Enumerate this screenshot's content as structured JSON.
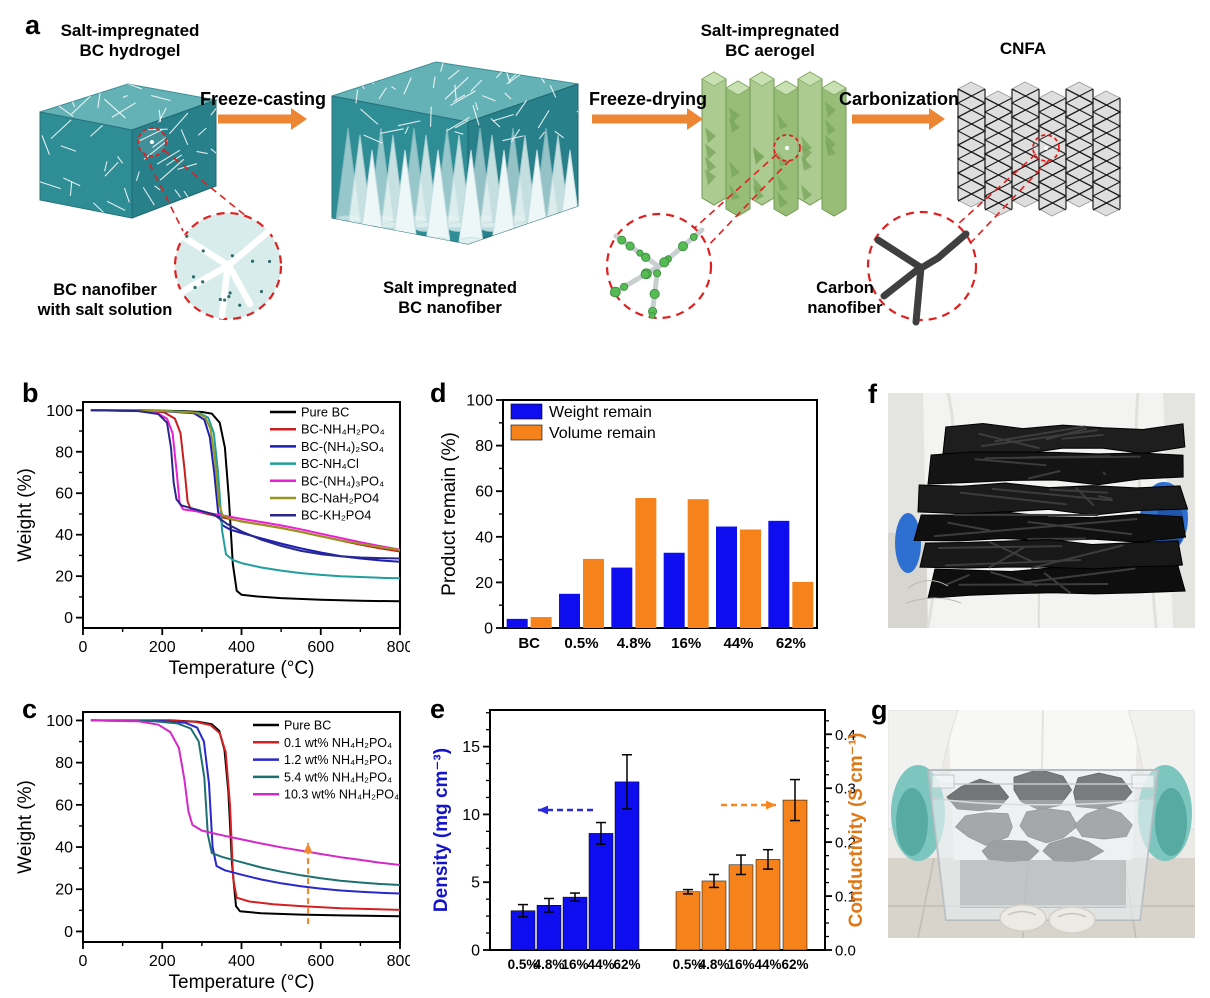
{
  "panel_labels": {
    "a": "a",
    "b": "b",
    "c": "c",
    "d": "d",
    "e": "e",
    "f": "f",
    "g": "g"
  },
  "panel_a": {
    "stage_titles": [
      [
        "Salt-impregnated",
        "BC hydrogel"
      ],
      [
        "Salt-impregnated",
        "BC aerogel"
      ],
      [
        "CNFA"
      ]
    ],
    "arrow_labels": [
      "Freeze-casting",
      "Freeze-drying",
      "Carbonization"
    ],
    "captions": [
      [
        "BC nanofiber",
        "with salt solution"
      ],
      [
        "Salt impregnated",
        "BC nanofiber"
      ],
      [
        "Carbon",
        "nanofiber"
      ]
    ]
  },
  "colors": {
    "process_arrow": "#ed8633",
    "dashed_red": "#e02020",
    "bar_blue": "#0d0df0",
    "bar_orange": "#f6821c",
    "cube_teal": "#2f8d96",
    "aerogel_green": "#a6c98a",
    "glove_blue": "#2e6fd2",
    "glove_teal": "#7cc6bf"
  },
  "chart_data": [
    {
      "id": "b",
      "type": "line",
      "xlabel": "Temperature (°C)",
      "ylabel": "Weight (%)",
      "xlim": [
        0,
        800
      ],
      "ylim": [
        -5,
        104
      ],
      "xticks": [
        0,
        200,
        400,
        600,
        800
      ],
      "xminor": [
        100,
        300,
        500,
        700
      ],
      "yticks": [
        0,
        20,
        40,
        60,
        80,
        100
      ],
      "yminor": [
        10,
        30,
        50,
        70,
        90
      ],
      "legend_position": "top-right",
      "series": [
        {
          "name": "Pure BC",
          "color": "#000000",
          "points": [
            [
              20,
              100
            ],
            [
              150,
              100
            ],
            [
              250,
              99.6
            ],
            [
              300,
              99.2
            ],
            [
              325,
              98.4
            ],
            [
              345,
              94
            ],
            [
              358,
              82
            ],
            [
              368,
              58
            ],
            [
              378,
              26
            ],
            [
              388,
              13
            ],
            [
              400,
              11
            ],
            [
              440,
              10.2
            ],
            [
              500,
              9.4
            ],
            [
              600,
              8.6
            ],
            [
              700,
              8.1
            ],
            [
              800,
              7.9
            ]
          ]
        },
        {
          "name": "BC-NH₄H₂PO₄",
          "color": "#c81e1e",
          "points": [
            [
              20,
              100
            ],
            [
              160,
              99.8
            ],
            [
              205,
              99
            ],
            [
              232,
              96
            ],
            [
              246,
              89
            ],
            [
              256,
              72
            ],
            [
              264,
              56
            ],
            [
              272,
              52.3
            ],
            [
              300,
              50.6
            ],
            [
              350,
              48.4
            ],
            [
              400,
              46.4
            ],
            [
              450,
              44.9
            ],
            [
              500,
              43.3
            ],
            [
              550,
              41.4
            ],
            [
              600,
              39.3
            ],
            [
              650,
              37.2
            ],
            [
              700,
              35.2
            ],
            [
              750,
              33.4
            ],
            [
              800,
              31.9
            ]
          ]
        },
        {
          "name": "BC-(NH₄)₂SO₄",
          "color": "#1e1eb4",
          "points": [
            [
              20,
              100
            ],
            [
              200,
              99.6
            ],
            [
              280,
              98.6
            ],
            [
              306,
              95.5
            ],
            [
              320,
              87
            ],
            [
              331,
              70
            ],
            [
              341,
              51
            ],
            [
              352,
              44.6
            ],
            [
              372,
              42.4
            ],
            [
              400,
              40.8
            ],
            [
              450,
              38.2
            ],
            [
              500,
              35.7
            ],
            [
              550,
              33.4
            ],
            [
              600,
              31.4
            ],
            [
              650,
              29.7
            ],
            [
              700,
              28.5
            ],
            [
              750,
              27.6
            ],
            [
              800,
              27
            ]
          ]
        },
        {
          "name": "BC-NH₄Cl",
          "color": "#209e9e",
          "points": [
            [
              20,
              100
            ],
            [
              210,
              99.7
            ],
            [
              292,
              98.8
            ],
            [
              316,
              96.5
            ],
            [
              330,
              89
            ],
            [
              341,
              70
            ],
            [
              351,
              42
            ],
            [
              361,
              30.5
            ],
            [
              378,
              27.8
            ],
            [
              400,
              26.3
            ],
            [
              450,
              24.2
            ],
            [
              500,
              22.7
            ],
            [
              550,
              21.5
            ],
            [
              600,
              20.6
            ],
            [
              650,
              20
            ],
            [
              700,
              19.6
            ],
            [
              750,
              19.2
            ],
            [
              800,
              19
            ]
          ]
        },
        {
          "name": "BC-(NH₄)₃PO₄",
          "color": "#ea1ed2",
          "points": [
            [
              20,
              100
            ],
            [
              140,
              99.8
            ],
            [
              185,
              98.8
            ],
            [
              212,
              96
            ],
            [
              226,
              89
            ],
            [
              236,
              71
            ],
            [
              244,
              55
            ],
            [
              253,
              52.2
            ],
            [
              290,
              51.2
            ],
            [
              350,
              49.4
            ],
            [
              400,
              47.6
            ],
            [
              450,
              46.1
            ],
            [
              500,
              44.5
            ],
            [
              550,
              42.6
            ],
            [
              600,
              40.5
            ],
            [
              650,
              38.4
            ],
            [
              700,
              36.4
            ],
            [
              750,
              34.5
            ],
            [
              800,
              32.8
            ]
          ]
        },
        {
          "name": "BC-NaH₂PO4",
          "color": "#96961e",
          "points": [
            [
              20,
              100
            ],
            [
              210,
              99.6
            ],
            [
              285,
              98.9
            ],
            [
              308,
              96.8
            ],
            [
              322,
              91
            ],
            [
              333,
              76
            ],
            [
              343,
              55
            ],
            [
              352,
              49.4
            ],
            [
              372,
              47.7
            ],
            [
              400,
              46.3
            ],
            [
              450,
              44.8
            ],
            [
              500,
              43.2
            ],
            [
              550,
              41.3
            ],
            [
              600,
              39.2
            ],
            [
              650,
              37.3
            ],
            [
              700,
              35.6
            ],
            [
              750,
              34
            ],
            [
              800,
              32.6
            ]
          ]
        },
        {
          "name": "BC-KH₂PO4",
          "color": "#28288c",
          "points": [
            [
              20,
              100
            ],
            [
              140,
              99.6
            ],
            [
              190,
              98.2
            ],
            [
              212,
              94
            ],
            [
              222,
              82
            ],
            [
              229,
              65
            ],
            [
              236,
              57
            ],
            [
              248,
              54.2
            ],
            [
              280,
              52.4
            ],
            [
              330,
              49.8
            ],
            [
              365,
              45
            ],
            [
              400,
              41.6
            ],
            [
              450,
              37.6
            ],
            [
              500,
              34.6
            ],
            [
              550,
              32.2
            ],
            [
              600,
              30.6
            ],
            [
              650,
              29.6
            ],
            [
              700,
              29
            ],
            [
              750,
              28.7
            ],
            [
              800,
              28.5
            ]
          ]
        }
      ]
    },
    {
      "id": "c",
      "type": "line",
      "xlabel": "Temperature (°C)",
      "ylabel": "Weight (%)",
      "xlim": [
        0,
        800
      ],
      "ylim": [
        -5,
        104
      ],
      "xticks": [
        0,
        200,
        400,
        600,
        800
      ],
      "xminor": [
        100,
        300,
        500,
        700
      ],
      "yticks": [
        0,
        20,
        40,
        60,
        80,
        100
      ],
      "yminor": [
        10,
        30,
        50,
        70,
        90
      ],
      "legend_position": "top-right",
      "annotation_arrow": {
        "x_data": 568,
        "y_from": 3.5,
        "y_to": 42,
        "color": "#f08a30"
      },
      "series": [
        {
          "name": "Pure BC",
          "color": "#000000",
          "points": [
            [
              20,
              100
            ],
            [
              220,
              100
            ],
            [
              290,
              99.4
            ],
            [
              325,
              98.2
            ],
            [
              344,
              95
            ],
            [
              357,
              86
            ],
            [
              367,
              66
            ],
            [
              376,
              32
            ],
            [
              386,
              12
            ],
            [
              396,
              9.6
            ],
            [
              450,
              8.6
            ],
            [
              550,
              8
            ],
            [
              650,
              7.6
            ],
            [
              800,
              7.2
            ]
          ]
        },
        {
          "name": "0.1 wt% NH₄H₂PO₄",
          "color": "#d42020",
          "points": [
            [
              20,
              100
            ],
            [
              220,
              99.9
            ],
            [
              285,
              99.3
            ],
            [
              322,
              97.8
            ],
            [
              345,
              94
            ],
            [
              360,
              85
            ],
            [
              371,
              60
            ],
            [
              379,
              25
            ],
            [
              388,
              16
            ],
            [
              420,
              14.2
            ],
            [
              480,
              12.9
            ],
            [
              550,
              12
            ],
            [
              650,
              11
            ],
            [
              800,
              10.2
            ]
          ]
        },
        {
          "name": "1.2 wt% NH₄H₂PO₄",
          "color": "#2828cc",
          "points": [
            [
              20,
              100
            ],
            [
              200,
              99.7
            ],
            [
              258,
              98.9
            ],
            [
              288,
              96.6
            ],
            [
              305,
              90
            ],
            [
              318,
              70
            ],
            [
              327,
              40
            ],
            [
              337,
              31
            ],
            [
              358,
              29
            ],
            [
              400,
              26.9
            ],
            [
              450,
              24.6
            ],
            [
              500,
              22.8
            ],
            [
              550,
              21.4
            ],
            [
              600,
              20.3
            ],
            [
              650,
              19.4
            ],
            [
              700,
              18.8
            ],
            [
              750,
              18.3
            ],
            [
              800,
              18
            ]
          ]
        },
        {
          "name": "5.4 wt% NH₄H₂PO₄",
          "color": "#1e7070",
          "points": [
            [
              20,
              100
            ],
            [
              180,
              99.6
            ],
            [
              238,
              98.6
            ],
            [
              272,
              96.2
            ],
            [
              292,
              90
            ],
            [
              306,
              73
            ],
            [
              315,
              46
            ],
            [
              325,
              37.2
            ],
            [
              350,
              35.4
            ],
            [
              400,
              32.8
            ],
            [
              450,
              30.3
            ],
            [
              500,
              28.3
            ],
            [
              550,
              26.6
            ],
            [
              600,
              25.2
            ],
            [
              650,
              24
            ],
            [
              700,
              23.2
            ],
            [
              750,
              22.5
            ],
            [
              800,
              22
            ]
          ]
        },
        {
          "name": "10.3 wt% NH₄H₂PO₄",
          "color": "#d428c8",
          "points": [
            [
              20,
              100
            ],
            [
              140,
              99.6
            ],
            [
              190,
              98
            ],
            [
              220,
              94.5
            ],
            [
              242,
              87
            ],
            [
              256,
              72
            ],
            [
              266,
              57
            ],
            [
              276,
              50.5
            ],
            [
              300,
              47.8
            ],
            [
              350,
              45.6
            ],
            [
              400,
              43.6
            ],
            [
              450,
              41.7
            ],
            [
              500,
              39.9
            ],
            [
              550,
              38.3
            ],
            [
              600,
              36.7
            ],
            [
              650,
              35.2
            ],
            [
              700,
              33.9
            ],
            [
              750,
              32.6
            ],
            [
              800,
              31.5
            ]
          ]
        }
      ]
    },
    {
      "id": "d",
      "type": "bar",
      "ylabel": "Product remain (%)",
      "ylim": [
        0,
        100
      ],
      "yticks": [
        0,
        20,
        40,
        60,
        80,
        100
      ],
      "yminor": [
        10,
        30,
        50,
        70,
        90
      ],
      "categories": [
        "BC",
        "0.5%",
        "4.8%",
        "16%",
        "44%",
        "62%"
      ],
      "legend_position": "top-left",
      "series": [
        {
          "name": "Weight remain",
          "color": "#0d0df0",
          "values": [
            4,
            15,
            26.5,
            33,
            44.5,
            47
          ]
        },
        {
          "name": "Volume remain",
          "color": "#f6821c",
          "values": [
            4.8,
            30.3,
            57,
            56.5,
            43.2,
            20.2
          ]
        }
      ]
    },
    {
      "id": "e",
      "type": "dual-bar",
      "categories": [
        "0.5%",
        "4.8%",
        "16%",
        "44%",
        "62%"
      ],
      "left": {
        "label": "Density (mg cm⁻³)",
        "color": "#0d0df0",
        "text_color": "#1414cc",
        "ylim": [
          0,
          17.7
        ],
        "ticks": [
          0,
          5,
          10,
          15
        ],
        "values": [
          2.9,
          3.3,
          3.9,
          8.6,
          12.4
        ],
        "errors": [
          0.45,
          0.5,
          0.3,
          0.8,
          2.0
        ]
      },
      "right": {
        "label": "Conductivity (S cm⁻¹)",
        "color": "#f6821c",
        "text_color": "#e07818",
        "ylim": [
          0,
          0.445
        ],
        "ticks": [
          0,
          0.1,
          0.2,
          0.3,
          0.4
        ],
        "values": [
          0.108,
          0.128,
          0.158,
          0.168,
          0.278
        ],
        "errors": [
          0.004,
          0.012,
          0.018,
          0.018,
          0.038
        ]
      }
    }
  ]
}
